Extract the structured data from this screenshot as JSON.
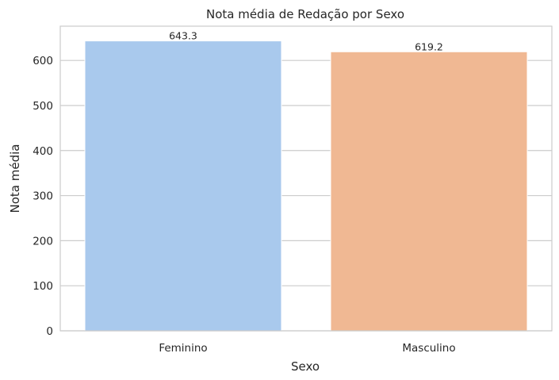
{
  "chart_data": {
    "type": "bar",
    "title": "Nota média de Redação por Sexo",
    "xlabel": "Sexo",
    "ylabel": "Nota média",
    "categories": [
      "Feminino",
      "Masculino"
    ],
    "values": [
      643.3,
      619.2
    ],
    "value_labels": [
      "643.3",
      "619.2"
    ],
    "colors": [
      "#a9c9ed",
      "#f0b893"
    ],
    "ylim": [
      0,
      676
    ],
    "yticks": [
      0,
      100,
      200,
      300,
      400,
      500,
      600
    ],
    "grid": true,
    "legend": "none"
  }
}
